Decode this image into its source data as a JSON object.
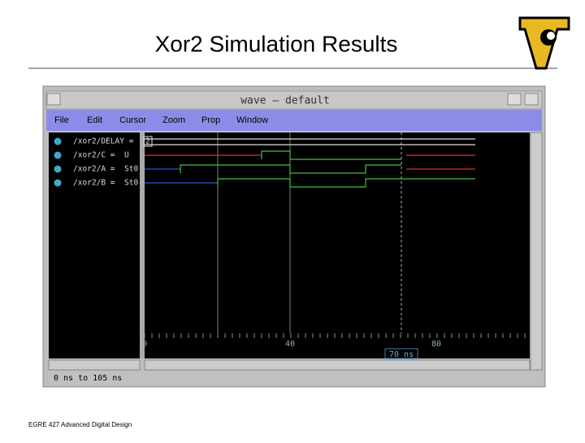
{
  "title": "Xor2 Simulation Results",
  "footer": "EGRE 427 Advanced Digital Design",
  "window": {
    "title": "wave – default",
    "menu": [
      "File",
      "Edit",
      "Cursor",
      "Zoom",
      "Prop",
      "Window"
    ],
    "signals": [
      {
        "name": "/xor2/DELAY =",
        "value": "2"
      },
      {
        "name": "/xor2/C =",
        "value": "U"
      },
      {
        "name": "/xor2/A =",
        "value": "St0"
      },
      {
        "name": "/xor2/B =",
        "value": "St0"
      }
    ],
    "time_labels": [
      "0",
      "40",
      "80"
    ],
    "cursor": "70 ns",
    "status": "0 ns to 105 ns"
  }
}
